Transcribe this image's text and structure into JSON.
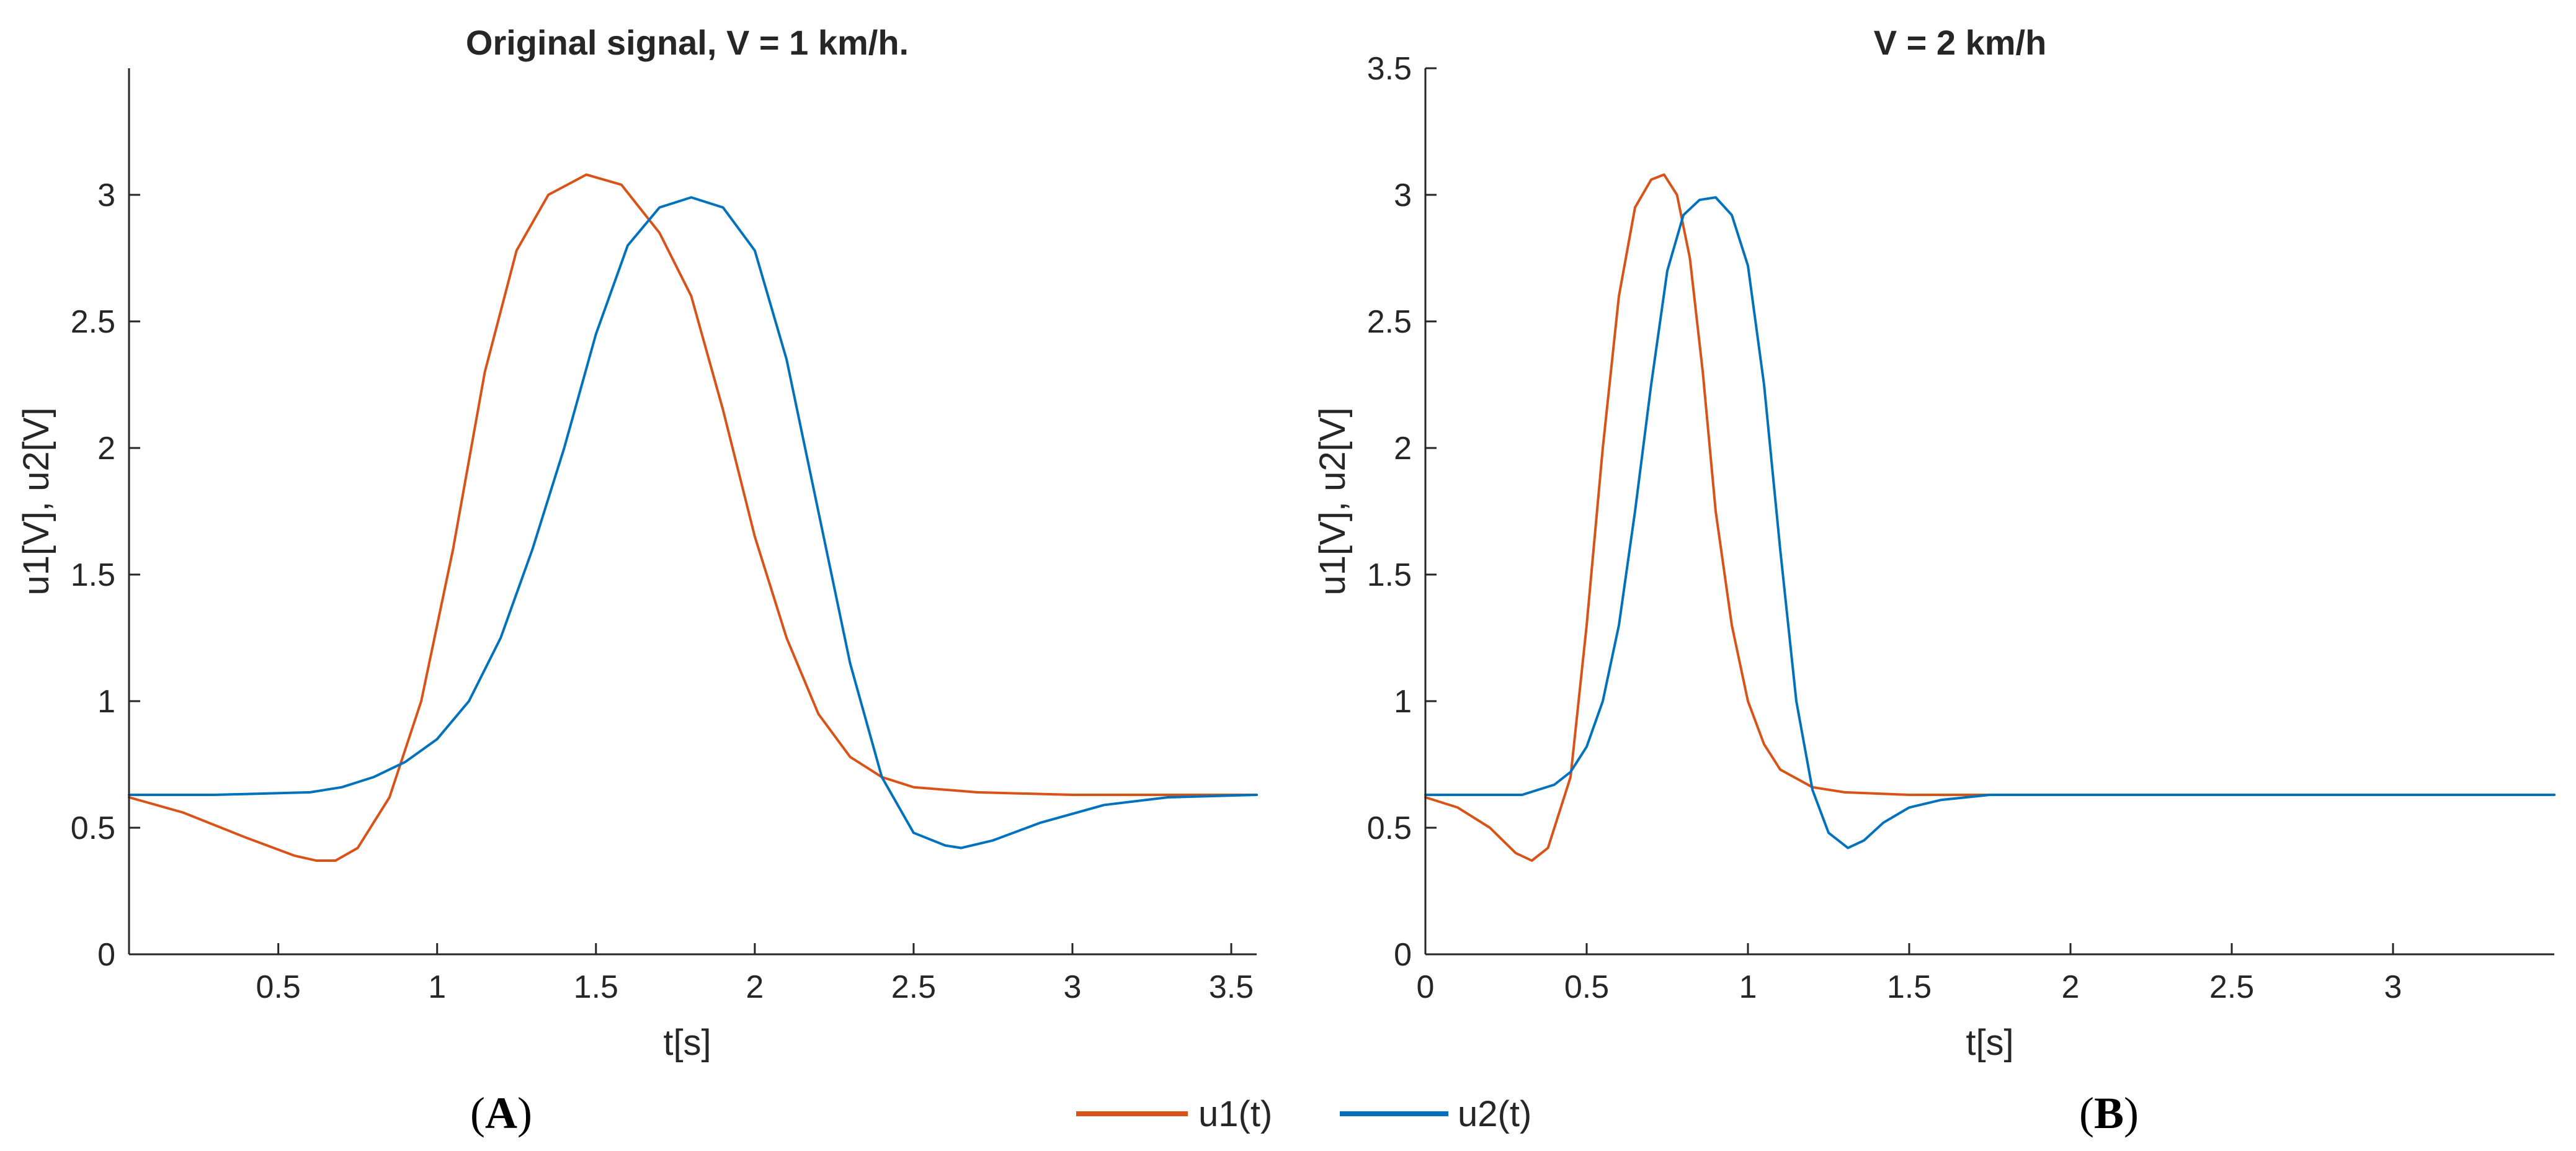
{
  "legend": [
    {
      "name": "u1(t)",
      "color": "#D95319"
    },
    {
      "name": "u2(t)",
      "color": "#0072BD"
    }
  ],
  "panels": [
    {
      "prefix": "(",
      "letter": "A",
      "suffix": ")"
    },
    {
      "prefix": "(",
      "letter": "B",
      "suffix": ")"
    }
  ],
  "chart_data": [
    {
      "type": "line",
      "title": "Original signal, V = 1 km/h.",
      "xlabel": "t[s]",
      "ylabel": "u1[V], u2[V]",
      "xlim": [
        0.03,
        3.58
      ],
      "ylim": [
        0,
        3.5
      ],
      "xticks": [
        0.5,
        1,
        1.5,
        2,
        2.5,
        3,
        3.5
      ],
      "xtick_labels": [
        "0.5",
        "1",
        "1.5",
        "2",
        "2.5",
        "3",
        "3.5"
      ],
      "yticks": [
        0,
        0.5,
        1,
        1.5,
        2,
        2.5,
        3
      ],
      "ytick_labels": [
        "0",
        "0.5",
        "1",
        "1.5",
        "2",
        "2.5",
        "3"
      ],
      "series": [
        {
          "name": "u1(t)",
          "color": "#D95319",
          "x": [
            0.03,
            0.2,
            0.4,
            0.55,
            0.62,
            0.68,
            0.75,
            0.85,
            0.95,
            1.05,
            1.15,
            1.25,
            1.35,
            1.47,
            1.58,
            1.7,
            1.8,
            1.9,
            2.0,
            2.1,
            2.2,
            2.3,
            2.4,
            2.5,
            2.7,
            3.0,
            3.58
          ],
          "y": [
            0.62,
            0.56,
            0.46,
            0.39,
            0.37,
            0.37,
            0.42,
            0.62,
            1.0,
            1.6,
            2.3,
            2.78,
            3.0,
            3.08,
            3.04,
            2.85,
            2.6,
            2.15,
            1.65,
            1.25,
            0.95,
            0.78,
            0.7,
            0.66,
            0.64,
            0.63,
            0.63
          ]
        },
        {
          "name": "u2(t)",
          "color": "#0072BD",
          "x": [
            0.03,
            0.3,
            0.6,
            0.7,
            0.8,
            0.9,
            1.0,
            1.1,
            1.2,
            1.3,
            1.4,
            1.5,
            1.6,
            1.7,
            1.8,
            1.9,
            2.0,
            2.1,
            2.2,
            2.3,
            2.4,
            2.5,
            2.6,
            2.65,
            2.75,
            2.9,
            3.1,
            3.3,
            3.58
          ],
          "y": [
            0.63,
            0.63,
            0.64,
            0.66,
            0.7,
            0.76,
            0.85,
            1.0,
            1.25,
            1.6,
            2.0,
            2.45,
            2.8,
            2.95,
            2.99,
            2.95,
            2.78,
            2.35,
            1.75,
            1.15,
            0.7,
            0.48,
            0.43,
            0.42,
            0.45,
            0.52,
            0.59,
            0.62,
            0.63
          ]
        }
      ]
    },
    {
      "type": "line",
      "title": "V = 2 km/h",
      "xlabel": "t[s]",
      "ylabel": "u1[V], u2[V]",
      "xlim": [
        0,
        3.5
      ],
      "ylim": [
        0,
        3.5
      ],
      "xticks": [
        0,
        0.5,
        1,
        1.5,
        2,
        2.5,
        3
      ],
      "xtick_labels": [
        "0",
        "0.5",
        "1",
        "1.5",
        "2",
        "2.5",
        "3"
      ],
      "yticks": [
        0,
        0.5,
        1,
        1.5,
        2,
        2.5,
        3,
        3.5
      ],
      "ytick_labels": [
        "0",
        "0.5",
        "1",
        "1.5",
        "2",
        "2.5",
        "3",
        "3.5"
      ],
      "series": [
        {
          "name": "u1(t)",
          "color": "#D95319",
          "x": [
            0,
            0.1,
            0.2,
            0.28,
            0.33,
            0.38,
            0.45,
            0.5,
            0.55,
            0.6,
            0.65,
            0.7,
            0.74,
            0.78,
            0.82,
            0.86,
            0.9,
            0.95,
            1.0,
            1.05,
            1.1,
            1.2,
            1.3,
            1.5,
            2.0,
            3.5
          ],
          "y": [
            0.62,
            0.58,
            0.5,
            0.4,
            0.37,
            0.42,
            0.7,
            1.3,
            2.0,
            2.6,
            2.95,
            3.06,
            3.08,
            3.0,
            2.75,
            2.3,
            1.75,
            1.3,
            1.0,
            0.83,
            0.73,
            0.66,
            0.64,
            0.63,
            0.63,
            0.63
          ]
        },
        {
          "name": "u2(t)",
          "color": "#0072BD",
          "x": [
            0,
            0.3,
            0.4,
            0.45,
            0.5,
            0.55,
            0.6,
            0.65,
            0.7,
            0.75,
            0.8,
            0.85,
            0.9,
            0.95,
            1.0,
            1.05,
            1.1,
            1.15,
            1.2,
            1.25,
            1.31,
            1.36,
            1.42,
            1.5,
            1.6,
            1.75,
            2.0,
            3.5
          ],
          "y": [
            0.63,
            0.63,
            0.67,
            0.72,
            0.82,
            1.0,
            1.3,
            1.75,
            2.25,
            2.7,
            2.92,
            2.98,
            2.99,
            2.92,
            2.72,
            2.25,
            1.6,
            1.0,
            0.65,
            0.48,
            0.42,
            0.45,
            0.52,
            0.58,
            0.61,
            0.63,
            0.63,
            0.63
          ]
        }
      ]
    }
  ]
}
